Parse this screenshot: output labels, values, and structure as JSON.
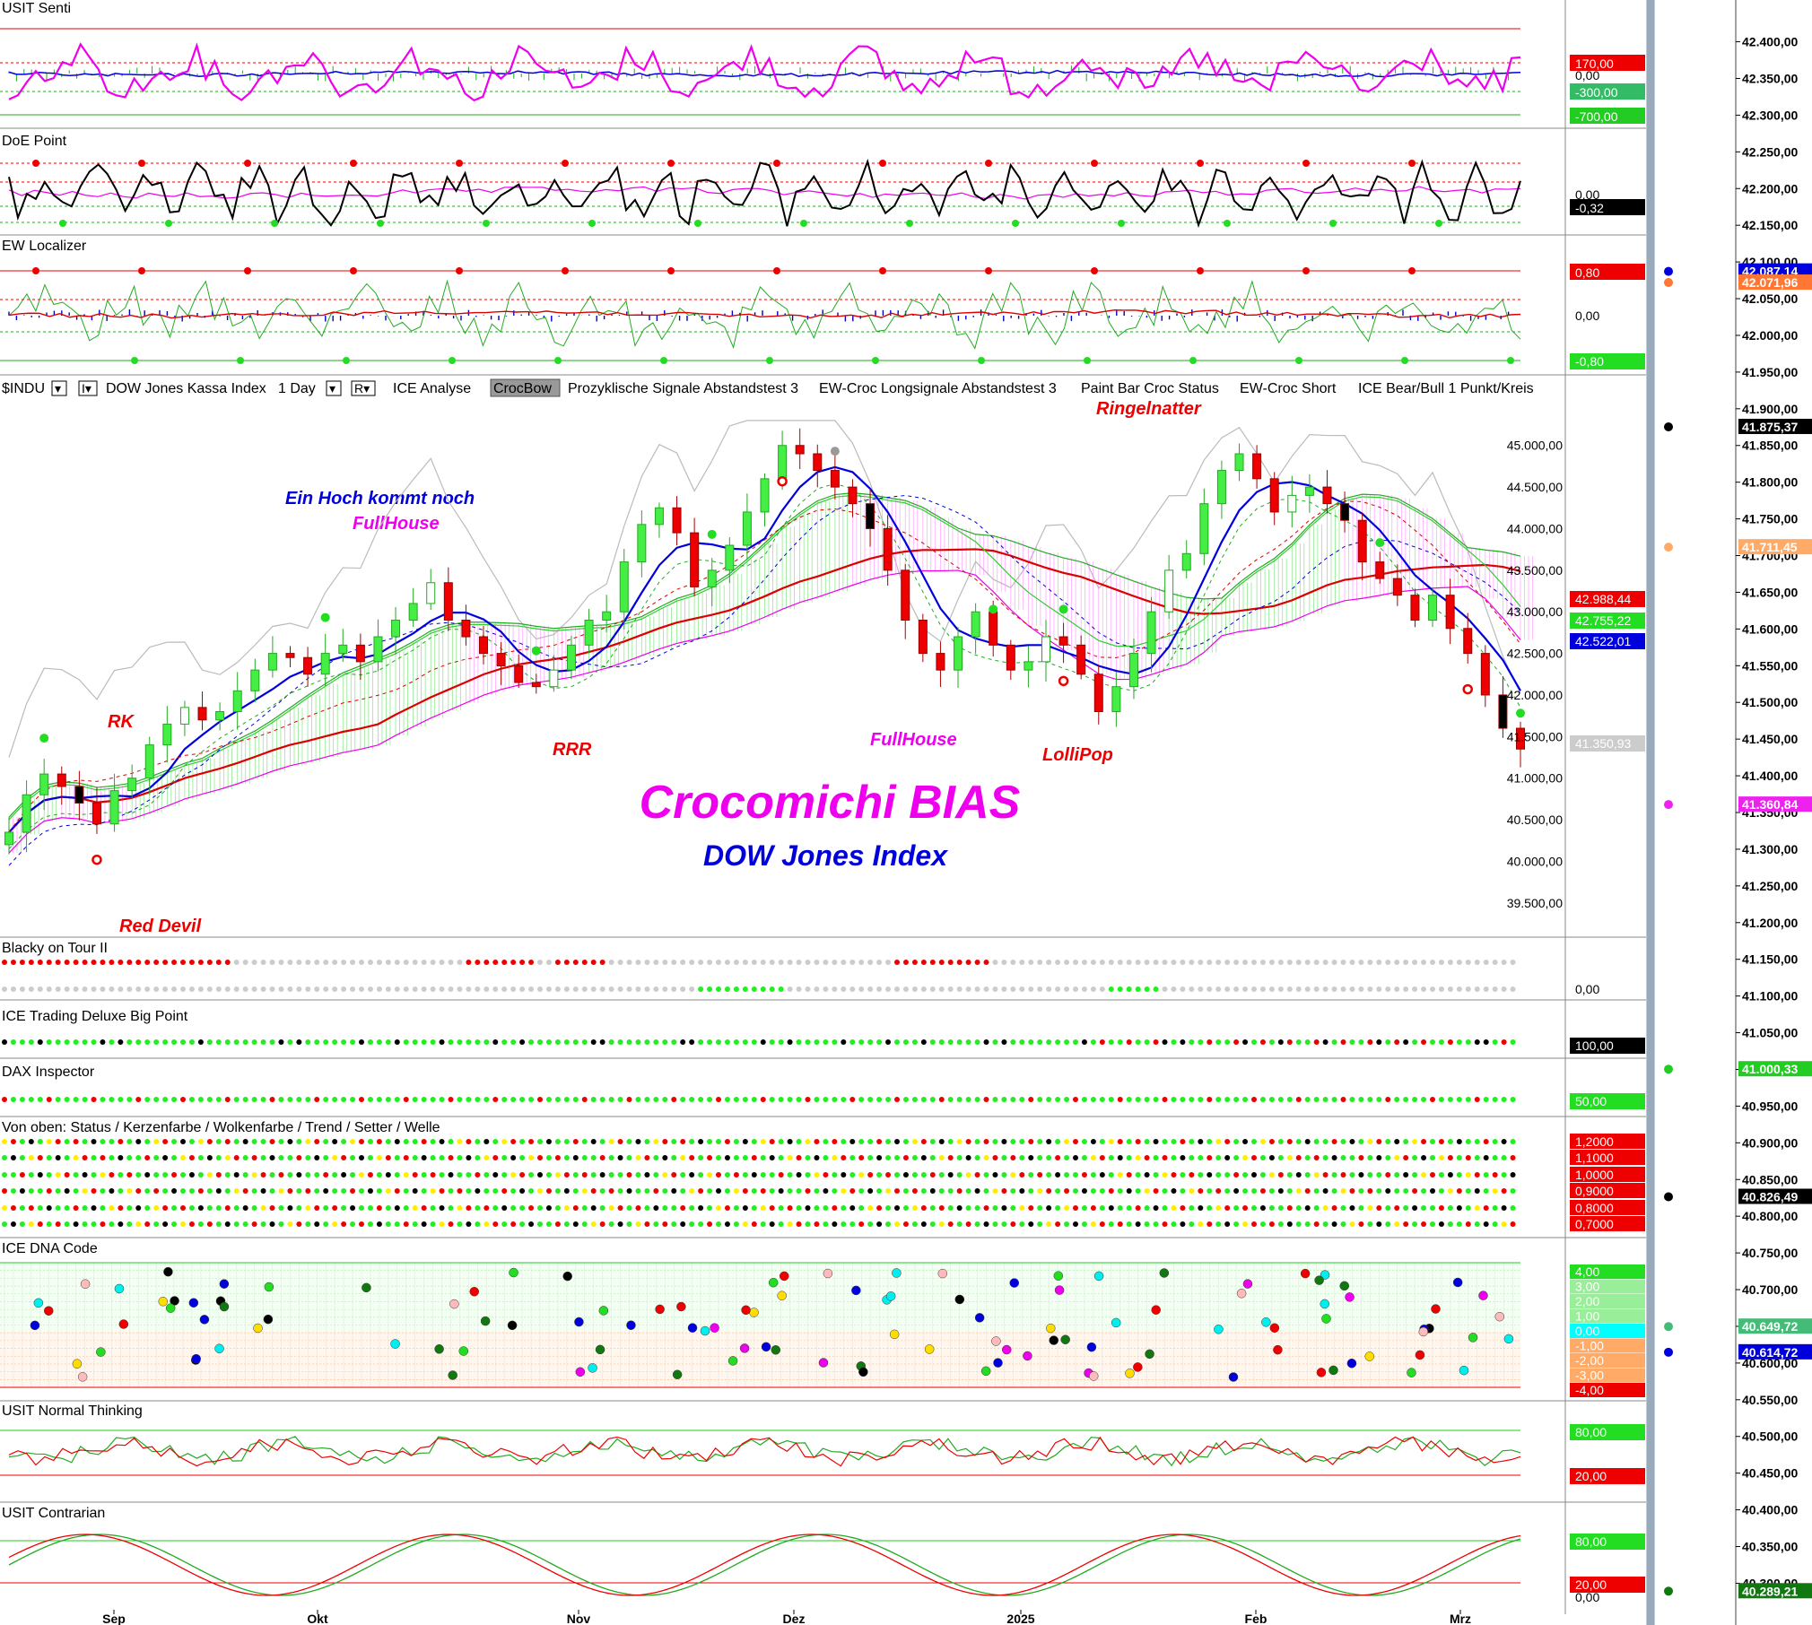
{
  "panels": {
    "senti": {
      "title": "USIT Senti",
      "badges": [
        "170,00",
        "0,00",
        "-300,00",
        "-700,00"
      ]
    },
    "doe": {
      "title": "DoE Point",
      "badges": [
        "0,00",
        "-0,32"
      ]
    },
    "ew": {
      "title": "EW Localizer",
      "badges": [
        "0,80",
        "0,00",
        "-0,80"
      ]
    },
    "blacky": {
      "title": "Blacky on Tour II",
      "badge": "0,00"
    },
    "ice_tdbp": {
      "title": "ICE Trading Deluxe Big Point",
      "badge": "100,00"
    },
    "dax": {
      "title": "DAX Inspector",
      "badge": "50,00"
    },
    "status": {
      "title": "Von oben: Status / Kerzenfarbe / Wolkenfarbe / Trend / Setter / Welle",
      "badges": [
        "1,2000",
        "1,1000",
        "1,0000",
        "0,9000",
        "0,8000",
        "0,7000"
      ]
    },
    "dna": {
      "title": "ICE DNA Code",
      "badges": [
        "4,00",
        "3,00",
        "2,00",
        "1,00",
        "0,00",
        "-1,00",
        "-2,00",
        "-3,00",
        "-4,00"
      ]
    },
    "normal": {
      "title": "USIT Normal Thinking",
      "badges": [
        "80,00",
        "20,00"
      ]
    },
    "contrarian": {
      "title": "USIT Contrarian",
      "badges": [
        "80,00",
        "20,00",
        "0,00"
      ]
    }
  },
  "main": {
    "toolbar": [
      "$INDU",
      "DOW Jones Kassa Index",
      "1 Day",
      "ICE Analyse",
      "CrocBow",
      "Prozyklische Signale Abstandstest 3",
      "EW-Croc Longsignale Abstandstest 3",
      "Paint Bar Croc Status",
      "EW-Croc Short",
      "ICE Bear/Bull 1 Punkt/Kreis"
    ],
    "title": "Crocomichi BIAS",
    "subtitle": "DOW Jones Index",
    "annotations": [
      "Ringelnatter",
      "Ein Hoch kommt noch",
      "FullHouse",
      "RK",
      "RRR",
      "FullHouse",
      "LolliPop",
      "Red Devil"
    ],
    "price_badges": [
      "42.988,44",
      "42.755,22",
      "42.522,01",
      "41.350,93"
    ]
  },
  "chart_data": {
    "type": "candlestick",
    "title": "Crocomichi BIAS",
    "subtitle": "DOW Jones Index",
    "x_tick_labels": [
      "Sep",
      "Okt",
      "Nov",
      "Dez",
      "2025",
      "Feb",
      "Mrz"
    ],
    "y_tick_labels": [
      "45.000,00",
      "44.500,00",
      "44.000,00",
      "43.500,00",
      "43.000,00",
      "42.500,00",
      "42.000,00",
      "41.500,00",
      "41.000,00",
      "40.500,00",
      "40.000,00",
      "39.500,00"
    ],
    "ylim": [
      39250,
      45450
    ],
    "closes": [
      40350,
      40800,
      41050,
      40900,
      40700,
      40450,
      40850,
      41000,
      41400,
      41650,
      41850,
      41700,
      41800,
      42050,
      42300,
      42500,
      42450,
      42250,
      42500,
      42600,
      42400,
      42700,
      42900,
      43100,
      43350,
      42900,
      42700,
      42500,
      42350,
      42150,
      42100,
      42300,
      42600,
      42900,
      43000,
      43600,
      44050,
      44250,
      43950,
      43300,
      43500,
      43800,
      44200,
      44600,
      45000,
      44900,
      44700,
      44500,
      44300,
      44000,
      43500,
      42900,
      42500,
      42300,
      42700,
      43000,
      42600,
      42300,
      42400,
      42700,
      42600,
      42250,
      41800,
      42100,
      42500,
      43000,
      43500,
      43700,
      44300,
      44700,
      44900,
      44600,
      44200,
      44400,
      44500,
      44300,
      44100,
      43600,
      43400,
      43200,
      42900,
      43200,
      42800,
      42500,
      42000,
      41600,
      41350
    ],
    "right_axis_labels": [
      "42.400,00",
      "42.350,00",
      "42.300,00",
      "42.250,00",
      "42.200,00",
      "42.150,00",
      "42.100,00",
      "42.050,00",
      "42.000,00",
      "41.950,00",
      "41.900,00",
      "41.850,00",
      "41.800,00",
      "41.750,00",
      "41.700,00",
      "41.650,00",
      "41.600,00",
      "41.550,00",
      "41.500,00",
      "41.450,00",
      "41.400,00",
      "41.350,00",
      "41.300,00",
      "41.250,00",
      "41.200,00",
      "41.150,00",
      "41.100,00",
      "41.050,00",
      "41.000,00",
      "40.950,00",
      "40.900,00",
      "40.850,00",
      "40.800,00",
      "40.750,00",
      "40.700,00",
      "40.650,00",
      "40.600,00",
      "40.550,00",
      "40.500,00",
      "40.450,00",
      "40.400,00",
      "40.350,00",
      "40.300,00"
    ],
    "right_axis_badges": [
      {
        "label": "42.087,14",
        "color": "#0000dd"
      },
      {
        "label": "42.071,96",
        "color": "#ff7733"
      },
      {
        "label": "41.875,37",
        "color": "#000000"
      },
      {
        "label": "41.711,45",
        "color": "#ffaa66"
      },
      {
        "label": "41.360,84",
        "color": "#ee22ee"
      },
      {
        "label": "41.000,33",
        "color": "#22cc22"
      },
      {
        "label": "40.826,49",
        "color": "#000000"
      },
      {
        "label": "40.649,72",
        "color": "#44bb77"
      },
      {
        "label": "40.614,72",
        "color": "#0000dd"
      },
      {
        "label": "40.289,21",
        "color": "#117711"
      }
    ],
    "right_axis_range": [
      40270,
      42430
    ]
  }
}
